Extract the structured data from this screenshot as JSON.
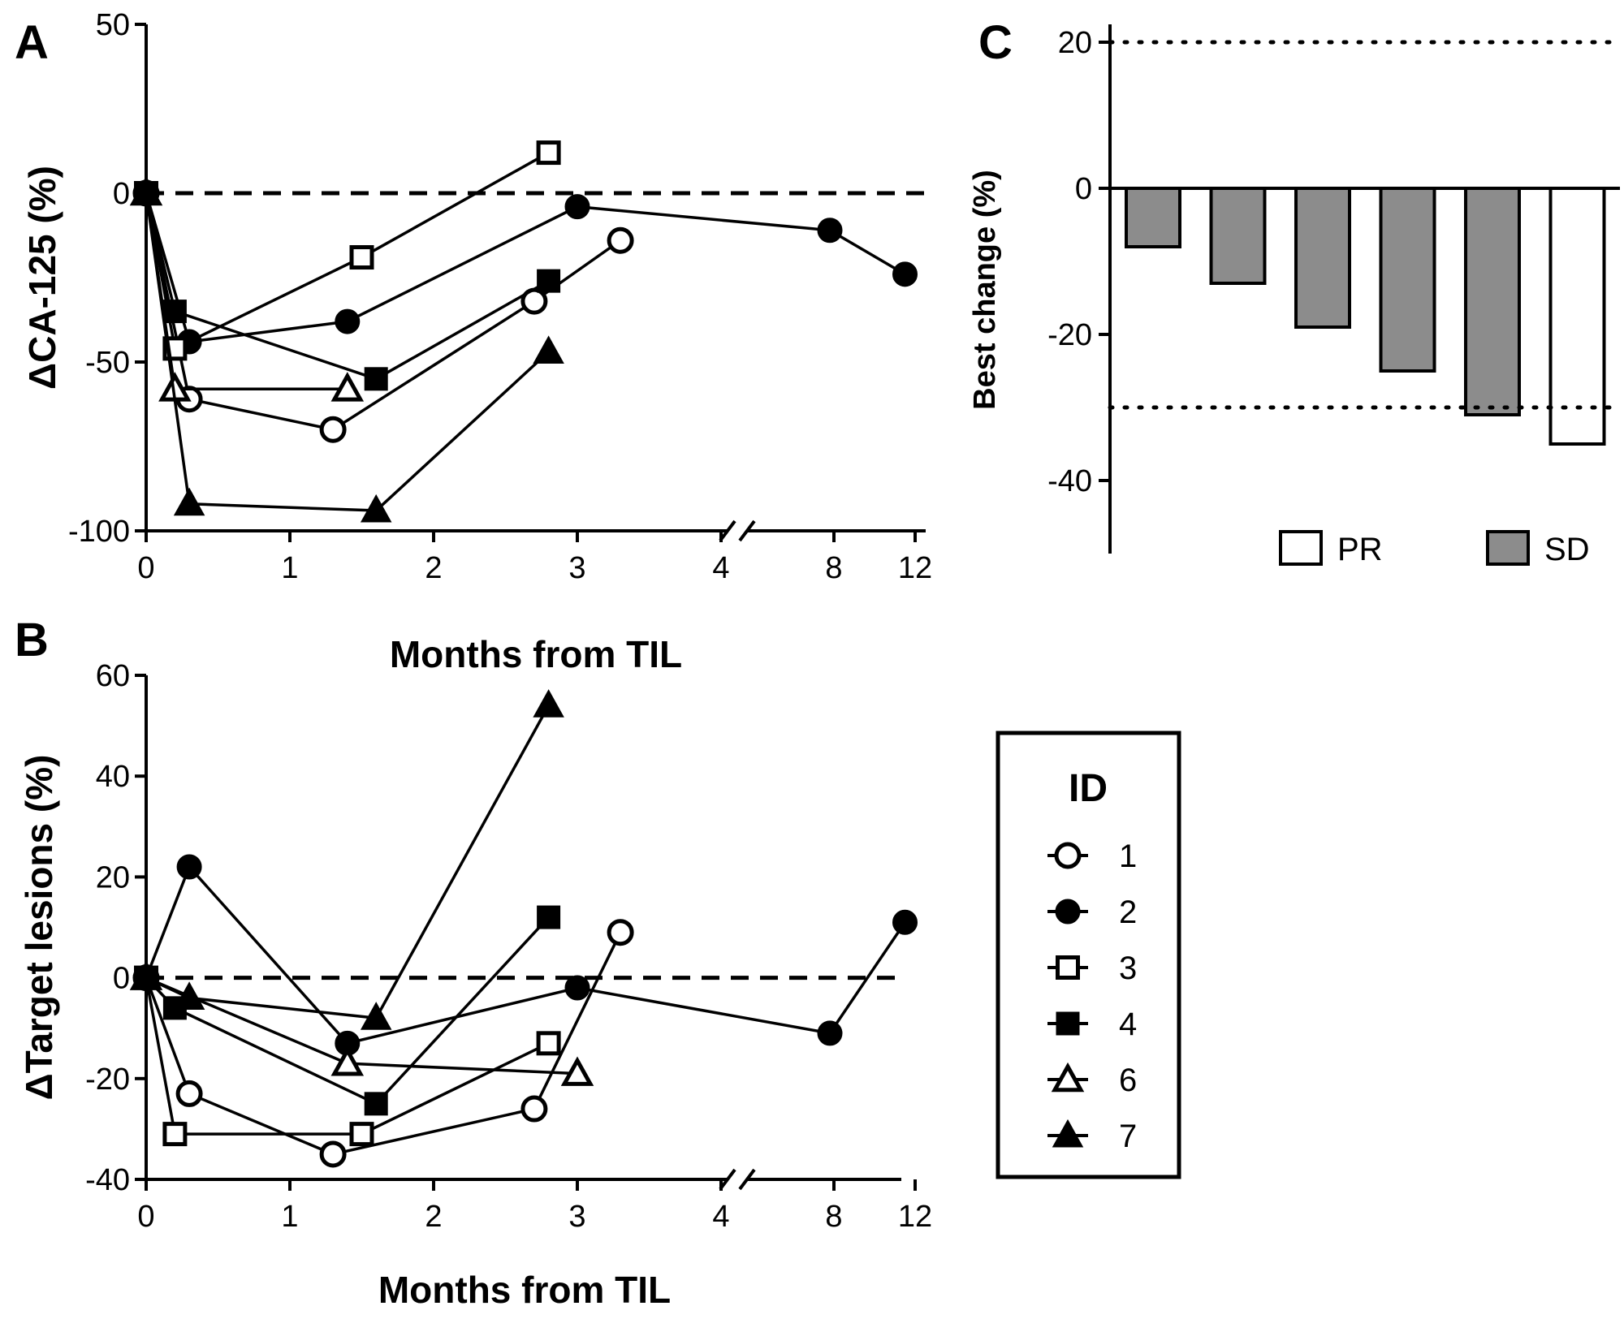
{
  "chart_data": [
    {
      "panel": "A",
      "type": "line",
      "xlabel": "Months from TIL",
      "ylabel": "ΔCA-125 (%)",
      "ylim": [
        -100,
        50
      ],
      "yticks": [
        "50",
        "0",
        "-50",
        "-100"
      ],
      "xticks": [
        "0",
        "1",
        "2",
        "3",
        "4",
        "8",
        "12"
      ],
      "axis_break": "between 4 and 8 months",
      "reference_line": {
        "y": 0,
        "style": "dashed"
      },
      "series": [
        {
          "name": "1",
          "marker": "open-circle",
          "points": [
            [
              0,
              0
            ],
            [
              0.3,
              -61
            ],
            [
              1.3,
              -70
            ],
            [
              2.7,
              -32
            ],
            [
              3.3,
              -14
            ]
          ]
        },
        {
          "name": "2",
          "marker": "filled-circle",
          "points": [
            [
              0,
              0
            ],
            [
              0.3,
              -44
            ],
            [
              1.4,
              -38
            ],
            [
              3.0,
              -4
            ],
            [
              7.8,
              -11
            ],
            [
              11.5,
              -24
            ]
          ]
        },
        {
          "name": "3",
          "marker": "open-square",
          "points": [
            [
              0,
              0
            ],
            [
              0.2,
              -46
            ],
            [
              1.5,
              -19
            ],
            [
              2.8,
              12
            ]
          ]
        },
        {
          "name": "4",
          "marker": "filled-square",
          "points": [
            [
              0,
              0
            ],
            [
              0.2,
              -35
            ],
            [
              1.6,
              -55
            ],
            [
              2.8,
              -26
            ]
          ]
        },
        {
          "name": "6",
          "marker": "open-triangle",
          "points": [
            [
              0,
              0
            ],
            [
              0.2,
              -58
            ],
            [
              1.4,
              -58
            ]
          ]
        },
        {
          "name": "7",
          "marker": "filled-triangle",
          "points": [
            [
              0,
              0
            ],
            [
              0.3,
              -92
            ],
            [
              1.6,
              -94
            ],
            [
              2.8,
              -47
            ]
          ]
        }
      ]
    },
    {
      "panel": "B",
      "type": "line",
      "xlabel": "Months from TIL",
      "ylabel": "ΔTarget lesions (%)",
      "ylim": [
        -40,
        60
      ],
      "yticks": [
        "60",
        "40",
        "20",
        "0",
        "-20",
        "-40"
      ],
      "xticks": [
        "0",
        "1",
        "2",
        "3",
        "4",
        "8",
        "12"
      ],
      "axis_break": "between 4 and 8 months",
      "reference_line": {
        "y": 0,
        "style": "dashed"
      },
      "series": [
        {
          "name": "1",
          "marker": "open-circle",
          "points": [
            [
              0,
              0
            ],
            [
              0.3,
              -23
            ],
            [
              1.3,
              -35
            ],
            [
              2.7,
              -26
            ],
            [
              3.3,
              9
            ]
          ]
        },
        {
          "name": "2",
          "marker": "filled-circle",
          "points": [
            [
              0,
              0
            ],
            [
              0.3,
              22
            ],
            [
              1.4,
              -13
            ],
            [
              3.0,
              -2
            ],
            [
              7.8,
              -11
            ],
            [
              11.5,
              11
            ]
          ]
        },
        {
          "name": "3",
          "marker": "open-square",
          "points": [
            [
              0,
              0
            ],
            [
              0.2,
              -31
            ],
            [
              1.5,
              -31
            ],
            [
              2.8,
              -13
            ]
          ]
        },
        {
          "name": "4",
          "marker": "filled-square",
          "points": [
            [
              0,
              0
            ],
            [
              0.2,
              -6
            ],
            [
              1.6,
              -25
            ],
            [
              2.8,
              12
            ]
          ]
        },
        {
          "name": "6",
          "marker": "open-triangle",
          "points": [
            [
              0,
              0
            ],
            [
              1.4,
              -17
            ],
            [
              3.0,
              -19
            ]
          ]
        },
        {
          "name": "7",
          "marker": "filled-triangle",
          "points": [
            [
              0,
              0
            ],
            [
              0.3,
              -4
            ],
            [
              1.6,
              -8
            ],
            [
              2.8,
              54
            ]
          ]
        }
      ]
    },
    {
      "panel": "C",
      "type": "bar",
      "ylabel": "Best change (%)",
      "ylim": [
        -50,
        20
      ],
      "yticks": [
        "20",
        "0",
        "-20",
        "-40"
      ],
      "reference_lines": [
        {
          "y": 20,
          "style": "dotted"
        },
        {
          "y": -30,
          "style": "dotted"
        }
      ],
      "values": [
        -8,
        -13,
        -19,
        -25,
        -31,
        -35
      ],
      "groups": [
        "SD",
        "SD",
        "SD",
        "SD",
        "SD",
        "PR"
      ],
      "legend": [
        {
          "label": "PR",
          "color": "#ffffff"
        },
        {
          "label": "SD",
          "color": "#8c8c8c"
        }
      ]
    }
  ],
  "legend": {
    "title": "ID",
    "entries": [
      {
        "label": "1",
        "marker": "open-circle"
      },
      {
        "label": "2",
        "marker": "filled-circle"
      },
      {
        "label": "3",
        "marker": "open-square"
      },
      {
        "label": "4",
        "marker": "filled-square"
      },
      {
        "label": "6",
        "marker": "open-triangle"
      },
      {
        "label": "7",
        "marker": "filled-triangle"
      }
    ]
  }
}
